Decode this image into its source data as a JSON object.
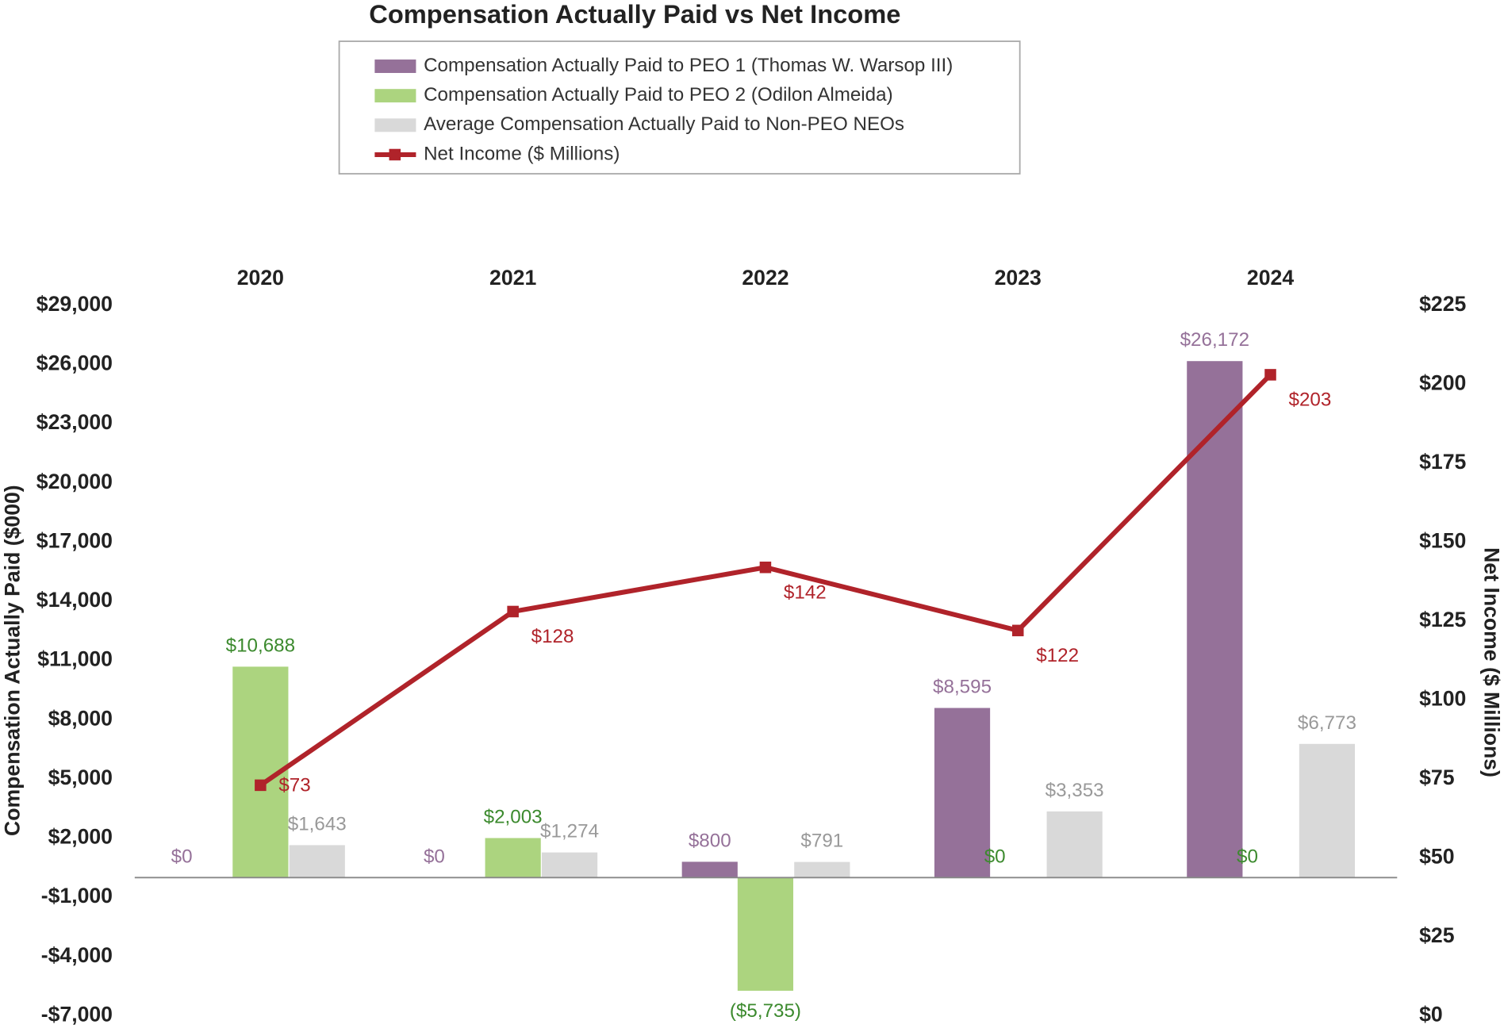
{
  "chart_data": {
    "type": "bar",
    "title": "Compensation Actually Paid vs Net Income",
    "y_label": "Compensation Actually Paid ($000)",
    "y2_label": "Net Income ($ Millions)",
    "categories": [
      "2020",
      "2021",
      "2022",
      "2023",
      "2024"
    ],
    "legend_position": "top",
    "series": [
      {
        "name": "Compensation Actually Paid to PEO 1 (Thomas W. Warsop III)",
        "color": "#957199",
        "label_color": "#957199",
        "values": [
          0,
          0,
          800,
          8595,
          26172
        ],
        "value_labels": [
          "$0",
          "$0",
          "$800",
          "$8,595",
          "$26,172"
        ]
      },
      {
        "name": "Compensation Actually Paid to PEO 2 (Odilon Almeida)",
        "color": "#acd47f",
        "label_color": "#3c8a2e",
        "values": [
          10688,
          2003,
          -5735,
          0,
          0
        ],
        "value_labels": [
          "$10,688",
          "$2,003",
          "($5,735)",
          "$0",
          "$0"
        ]
      },
      {
        "name": "Average Compensation Actually Paid to Non-PEO NEOs",
        "color": "#d9d9d9",
        "label_color": "#999999",
        "values": [
          1643,
          1274,
          791,
          3353,
          6773
        ],
        "value_labels": [
          "$1,643",
          "$1,274",
          "$791",
          "$3,353",
          "$6,773"
        ]
      },
      {
        "name": "Net Income ($ Millions)",
        "type": "line",
        "axis": "y2",
        "color": "#b0232a",
        "label_color": "#b0232a",
        "values": [
          73,
          128,
          142,
          122,
          203
        ],
        "value_labels": [
          "$73",
          "$128",
          "$142",
          "$122",
          "$203"
        ]
      }
    ],
    "ylim": [
      -7000,
      29000
    ],
    "yticks": [
      {
        "value": -7000,
        "label": "-$7,000"
      },
      {
        "value": -4000,
        "label": "-$4,000"
      },
      {
        "value": -1000,
        "label": "-$1,000"
      },
      {
        "value": 2000,
        "label": "$2,000"
      },
      {
        "value": 5000,
        "label": "$5,000"
      },
      {
        "value": 8000,
        "label": "$8,000"
      },
      {
        "value": 11000,
        "label": "$11,000"
      },
      {
        "value": 14000,
        "label": "$14,000"
      },
      {
        "value": 17000,
        "label": "$17,000"
      },
      {
        "value": 20000,
        "label": "$20,000"
      },
      {
        "value": 23000,
        "label": "$23,000"
      },
      {
        "value": 26000,
        "label": "$26,000"
      },
      {
        "value": 29000,
        "label": "$29,000"
      }
    ],
    "y2lim": [
      0,
      225
    ],
    "y2ticks": [
      {
        "value": 0,
        "label": "$0"
      },
      {
        "value": 25,
        "label": "$25"
      },
      {
        "value": 50,
        "label": "$50"
      },
      {
        "value": 75,
        "label": "$75"
      },
      {
        "value": 100,
        "label": "$100"
      },
      {
        "value": 125,
        "label": "$125"
      },
      {
        "value": 150,
        "label": "$150"
      },
      {
        "value": 175,
        "label": "$175"
      },
      {
        "value": 200,
        "label": "$200"
      },
      {
        "value": 225,
        "label": "$225"
      }
    ],
    "grid": false
  }
}
